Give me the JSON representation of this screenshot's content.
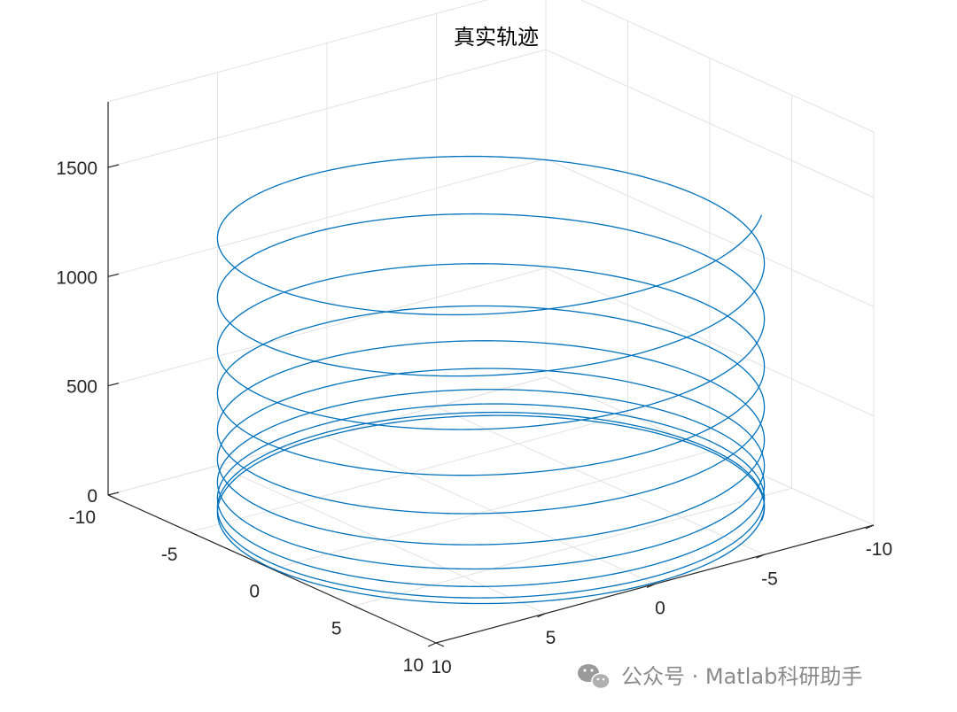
{
  "chart_data": {
    "type": "line",
    "dimension": "3d",
    "title": "真实轨迹",
    "xlabel": "",
    "ylabel": "",
    "zlabel": "",
    "x_ticks": [
      "-10",
      "-5",
      "0",
      "5",
      "10"
    ],
    "y_ticks": [
      "-10",
      "-5",
      "0",
      "5",
      "10"
    ],
    "z_ticks": [
      "0",
      "500",
      "1000",
      "1500"
    ],
    "xlim": [
      -10,
      10
    ],
    "ylim": [
      -10,
      10
    ],
    "zlim": [
      0,
      1500
    ],
    "grid": true,
    "series": [
      {
        "color": "#0072bd",
        "curve": "helix",
        "radius": 10,
        "turns": 10,
        "z_start": 0,
        "z_end": 1400,
        "z_growth": "accelerating"
      }
    ]
  },
  "watermark": {
    "icon": "wechat-icon",
    "text": "公众号 · Matlab科研助手"
  }
}
